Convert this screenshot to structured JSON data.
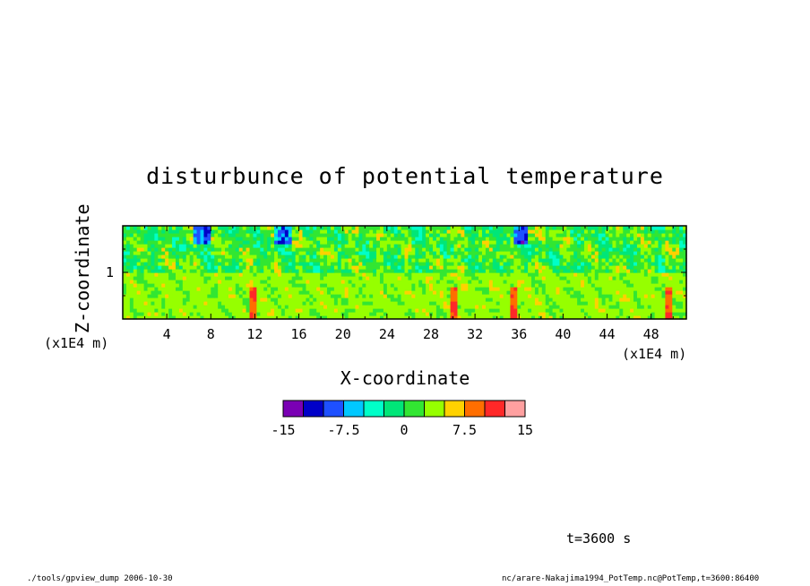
{
  "title": "disturbunce of potential temperature",
  "footer": {
    "left": "./tools/gpview_dump  2006-10-30",
    "right": "nc/arare-Nakajima1994_PotTemp.nc@PotTemp,t=3600:86400",
    "time": "t=3600 s"
  },
  "chart_data": {
    "type": "heatmap",
    "title": "disturbunce of potential temperature",
    "xlabel": "X-coordinate",
    "xunit": "(x1E4 m)",
    "ylabel": "Z-coordinate",
    "yunit": "(x1E4 m)",
    "xlim": [
      0,
      51.2
    ],
    "ylim": [
      0.5,
      1.5
    ],
    "xticks": [
      4,
      8,
      12,
      16,
      20,
      24,
      28,
      32,
      36,
      40,
      44,
      48
    ],
    "xtick_labels": [
      "4",
      "8",
      "12",
      "16",
      "20",
      "24",
      "28",
      "32",
      "36",
      "40",
      "44",
      "48"
    ],
    "yticks": [
      1
    ],
    "ytick_labels": [
      "1"
    ],
    "colorbar": {
      "levels": [
        -15,
        -12.5,
        -10,
        -7.5,
        -5,
        -2.5,
        0,
        2.5,
        5,
        7.5,
        10,
        12.5,
        15
      ],
      "colors": [
        "#7a00b4",
        "#0000c8",
        "#1e50ff",
        "#00c8ff",
        "#00ffc8",
        "#00e678",
        "#32e632",
        "#96ff00",
        "#ffd200",
        "#ff6e00",
        "#ff2828",
        "#ffa0a0"
      ],
      "tick_labels": [
        "-15",
        "-7.5",
        "0",
        "7.5",
        "15"
      ],
      "tick_values": [
        -15,
        -7.5,
        0,
        7.5,
        15
      ]
    },
    "field_description": {
      "upper_layer_range": [
        1.0,
        1.5
      ],
      "upper_layer_dominant": [
        0,
        2.5
      ],
      "lower_layer_range": [
        0.5,
        1.0
      ],
      "lower_layer_dominant": [
        2.5,
        5
      ],
      "notable_warm_spots_x": [
        11.8,
        30.0,
        35.4,
        49.6
      ],
      "notable_cold_spots_x": [
        7.2,
        36.2,
        14.6
      ]
    }
  }
}
